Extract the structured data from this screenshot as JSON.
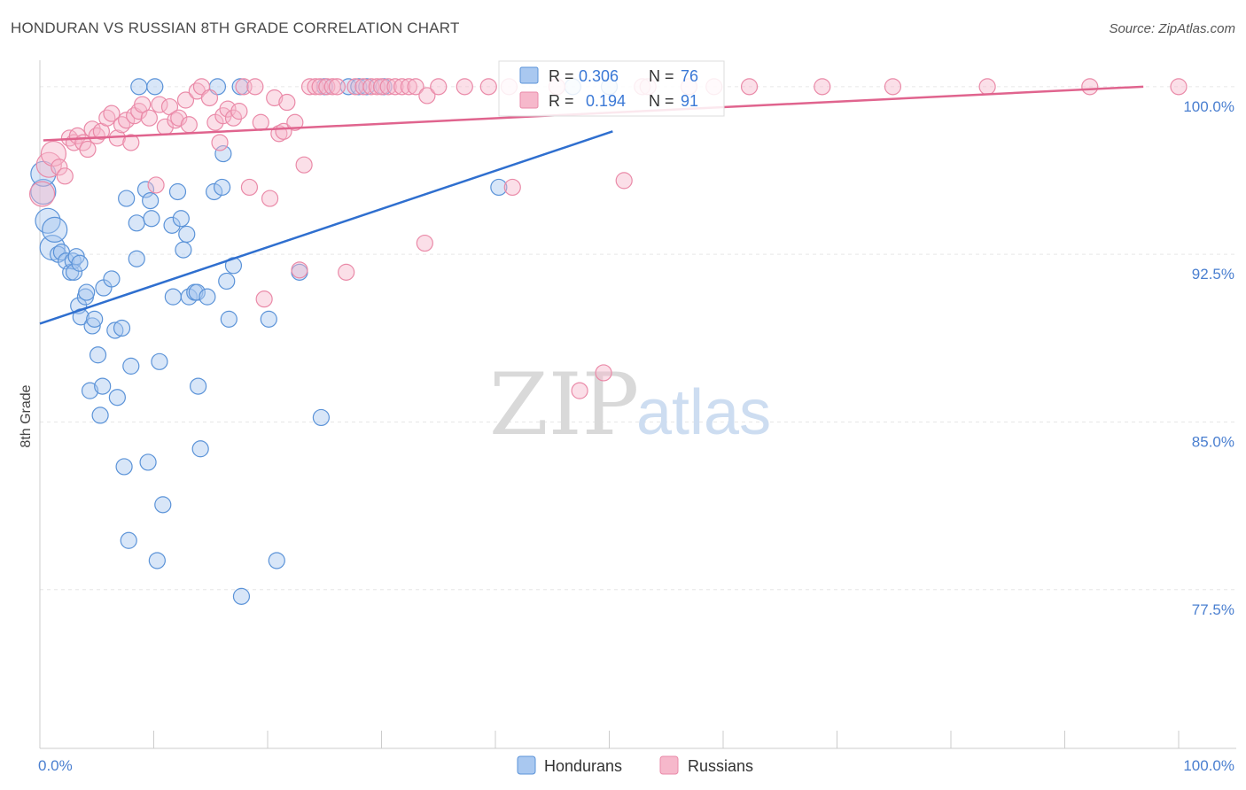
{
  "title": "HONDURAN VS RUSSIAN 8TH GRADE CORRELATION CHART",
  "source": "Source: ZipAtlas.com",
  "watermark": {
    "zip": "ZIP",
    "atlas": "atlas"
  },
  "colors": {
    "hondurans_fill": "#a9c8f0",
    "hondurans_stroke": "#5b93d8",
    "hondurans_line": "#2f6fcf",
    "russians_fill": "#f6b8cb",
    "russians_stroke": "#ea8aa8",
    "russians_line": "#e0648e",
    "tick_text": "#4a7fd0",
    "grid": "#e6e6e6"
  },
  "legend": {
    "hondurans": {
      "r_label": "R =",
      "r_value": "0.306",
      "n_label": "N =",
      "n_value": "76"
    },
    "russians": {
      "r_label": "R =",
      "r_value": "0.194",
      "n_label": "N =",
      "n_value": "91"
    }
  },
  "chart_data": {
    "type": "scatter",
    "title": "HONDURAN VS RUSSIAN 8TH GRADE CORRELATION CHART",
    "xlabel": "",
    "ylabel": "8th Grade",
    "xlim": [
      0,
      100
    ],
    "ylim": [
      70.4,
      101.5
    ],
    "x_tick_labels": [
      {
        "value": 0,
        "label": "0.0%"
      },
      {
        "value": 100,
        "label": "100.0%"
      }
    ],
    "x_minor_ticks": [
      10,
      20,
      30,
      40,
      50,
      60,
      70,
      80,
      90,
      100
    ],
    "y_ticks": [
      {
        "value": 100,
        "label": "100.0%"
      },
      {
        "value": 92.5,
        "label": "92.5%"
      },
      {
        "value": 85,
        "label": "85.0%"
      },
      {
        "value": 77.5,
        "label": "77.5%"
      }
    ],
    "series": [
      {
        "name": "Hondurans",
        "r": 0.306,
        "n": 76,
        "trend": {
          "x": [
            0,
            50.3
          ],
          "y": [
            89.4,
            98.0
          ]
        },
        "points": [
          [
            0.3,
            95.3
          ],
          [
            0.3,
            96.1
          ],
          [
            0.7,
            94
          ],
          [
            1.1,
            92.8
          ],
          [
            1.3,
            93.6
          ],
          [
            1.6,
            92.5
          ],
          [
            1.9,
            92.6
          ],
          [
            2.3,
            92.2
          ],
          [
            2.7,
            91.7
          ],
          [
            2.9,
            92.2
          ],
          [
            3.0,
            91.7
          ],
          [
            3.2,
            92.4
          ],
          [
            3.4,
            90.2
          ],
          [
            3.5,
            92.1
          ],
          [
            3.6,
            89.7
          ],
          [
            4.0,
            90.6
          ],
          [
            4.1,
            90.8
          ],
          [
            4.4,
            86.4
          ],
          [
            4.6,
            89.3
          ],
          [
            4.8,
            89.6
          ],
          [
            5.1,
            88.0
          ],
          [
            5.3,
            85.3
          ],
          [
            5.5,
            86.6
          ],
          [
            5.6,
            91.0
          ],
          [
            6.3,
            91.4
          ],
          [
            6.6,
            89.1
          ],
          [
            6.8,
            86.1
          ],
          [
            7.2,
            89.2
          ],
          [
            7.4,
            83.0
          ],
          [
            7.6,
            95.0
          ],
          [
            7.8,
            79.7
          ],
          [
            8.0,
            87.5
          ],
          [
            8.5,
            93.9
          ],
          [
            8.5,
            92.3
          ],
          [
            8.7,
            100.0
          ],
          [
            9.3,
            95.4
          ],
          [
            9.5,
            83.2
          ],
          [
            9.7,
            94.9
          ],
          [
            9.8,
            94.1
          ],
          [
            10.1,
            100.0
          ],
          [
            10.3,
            78.8
          ],
          [
            10.5,
            87.7
          ],
          [
            10.8,
            81.3
          ],
          [
            11.6,
            93.8
          ],
          [
            11.7,
            90.6
          ],
          [
            12.1,
            95.3
          ],
          [
            12.4,
            94.1
          ],
          [
            12.6,
            92.7
          ],
          [
            12.9,
            93.4
          ],
          [
            13.1,
            90.6
          ],
          [
            13.6,
            90.8
          ],
          [
            13.8,
            90.8
          ],
          [
            13.9,
            86.6
          ],
          [
            14.1,
            83.8
          ],
          [
            14.7,
            90.6
          ],
          [
            15.3,
            95.3
          ],
          [
            15.6,
            100.0
          ],
          [
            16.0,
            95.5
          ],
          [
            16.1,
            97.0
          ],
          [
            16.4,
            91.3
          ],
          [
            16.6,
            89.6
          ],
          [
            17.0,
            92.0
          ],
          [
            17.6,
            100.0
          ],
          [
            17.7,
            77.2
          ],
          [
            20.1,
            89.6
          ],
          [
            20.8,
            78.8
          ],
          [
            22.8,
            91.7
          ],
          [
            24.7,
            85.2
          ],
          [
            25.0,
            100.0
          ],
          [
            27.1,
            100.0
          ],
          [
            28.0,
            100.0
          ],
          [
            28.7,
            100.0
          ],
          [
            30.2,
            100.0
          ],
          [
            40.3,
            95.5
          ],
          [
            46.8,
            100.0
          ],
          [
            50.0,
            100.0
          ]
        ]
      },
      {
        "name": "Russians",
        "r": 0.194,
        "n": 91,
        "trend": {
          "x": [
            0.3,
            96.9
          ],
          "y": [
            97.6,
            100.0
          ]
        },
        "points": [
          [
            0.2,
            95.2
          ],
          [
            0.8,
            96.5
          ],
          [
            1.2,
            97.0
          ],
          [
            1.7,
            96.4
          ],
          [
            2.2,
            96.0
          ],
          [
            2.6,
            97.7
          ],
          [
            3.0,
            97.5
          ],
          [
            3.3,
            97.8
          ],
          [
            3.8,
            97.5
          ],
          [
            4.2,
            97.2
          ],
          [
            4.6,
            98.1
          ],
          [
            5.0,
            97.8
          ],
          [
            5.4,
            98.0
          ],
          [
            5.9,
            98.6
          ],
          [
            6.3,
            98.8
          ],
          [
            6.8,
            97.7
          ],
          [
            7.2,
            98.3
          ],
          [
            7.6,
            98.5
          ],
          [
            8.0,
            97.5
          ],
          [
            8.3,
            98.7
          ],
          [
            8.7,
            98.9
          ],
          [
            9.0,
            99.2
          ],
          [
            9.6,
            98.6
          ],
          [
            10.2,
            95.6
          ],
          [
            10.5,
            99.2
          ],
          [
            11.0,
            98.2
          ],
          [
            11.4,
            99.1
          ],
          [
            11.9,
            98.5
          ],
          [
            12.2,
            98.6
          ],
          [
            12.8,
            99.4
          ],
          [
            13.1,
            98.3
          ],
          [
            13.8,
            99.8
          ],
          [
            14.2,
            100.0
          ],
          [
            14.9,
            99.5
          ],
          [
            15.4,
            98.4
          ],
          [
            15.8,
            97.5
          ],
          [
            16.1,
            98.7
          ],
          [
            16.5,
            99.0
          ],
          [
            17.0,
            98.6
          ],
          [
            17.5,
            98.9
          ],
          [
            17.9,
            100.0
          ],
          [
            18.4,
            95.5
          ],
          [
            18.9,
            100.0
          ],
          [
            19.4,
            98.4
          ],
          [
            19.7,
            90.5
          ],
          [
            20.2,
            95.0
          ],
          [
            20.6,
            99.5
          ],
          [
            21.0,
            97.9
          ],
          [
            21.4,
            98.0
          ],
          [
            21.7,
            99.3
          ],
          [
            22.4,
            98.4
          ],
          [
            22.8,
            91.8
          ],
          [
            23.2,
            96.5
          ],
          [
            23.7,
            100.0
          ],
          [
            24.2,
            100.0
          ],
          [
            24.6,
            100.0
          ],
          [
            25.2,
            100.0
          ],
          [
            25.7,
            100.0
          ],
          [
            26.1,
            100.0
          ],
          [
            26.9,
            91.7
          ],
          [
            27.7,
            100.0
          ],
          [
            28.4,
            100.0
          ],
          [
            29.1,
            100.0
          ],
          [
            29.6,
            100.0
          ],
          [
            30.0,
            100.0
          ],
          [
            30.6,
            100.0
          ],
          [
            31.2,
            100.0
          ],
          [
            31.8,
            100.0
          ],
          [
            32.4,
            100.0
          ],
          [
            33.0,
            100.0
          ],
          [
            34.0,
            99.6
          ],
          [
            33.8,
            93.0
          ],
          [
            35.0,
            100.0
          ],
          [
            37.3,
            100.0
          ],
          [
            39.4,
            100.0
          ],
          [
            41.2,
            100.0
          ],
          [
            41.5,
            95.5
          ],
          [
            45.4,
            100.0
          ],
          [
            47.4,
            86.4
          ],
          [
            49.5,
            87.2
          ],
          [
            51.3,
            95.8
          ],
          [
            52.9,
            100.0
          ],
          [
            53.4,
            100.0
          ],
          [
            57.0,
            100.0
          ],
          [
            59.2,
            100.0
          ],
          [
            62.3,
            100.0
          ],
          [
            68.7,
            100.0
          ],
          [
            74.9,
            100.0
          ],
          [
            83.2,
            100.0
          ],
          [
            92.2,
            100.0
          ],
          [
            100.0,
            100.0
          ]
        ]
      }
    ]
  },
  "bottom_legend": [
    {
      "label": "Hondurans"
    },
    {
      "label": "Russians"
    }
  ]
}
